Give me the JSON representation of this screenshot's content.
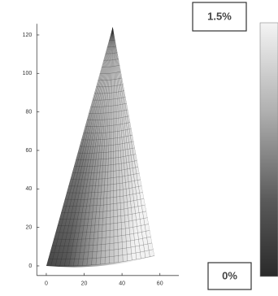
{
  "chart_data": {
    "type": "contour",
    "xlim": [
      -5,
      70
    ],
    "ylim": [
      -5,
      130
    ],
    "xticks": [
      0,
      20,
      40,
      60
    ],
    "yticks": [
      0,
      20,
      40,
      60,
      80,
      100,
      120
    ],
    "colorbar": {
      "max_label": "1.5%",
      "min_label": "0%"
    }
  }
}
